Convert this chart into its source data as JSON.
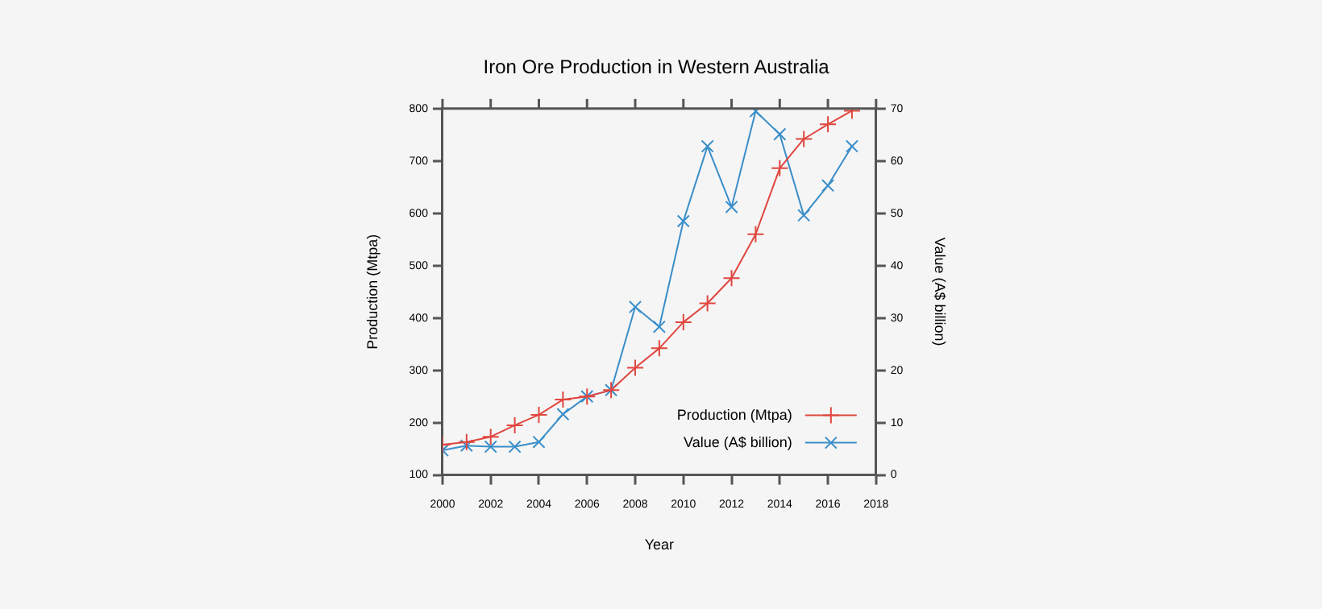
{
  "chart_data": {
    "type": "line",
    "title": "Iron Ore Production in Western Australia",
    "xlabel": "Year",
    "ylabel": "Production (Mtpa)",
    "y2label": "Value (A$ billion)",
    "x": [
      2000,
      2001,
      2002,
      2003,
      2004,
      2005,
      2006,
      2007,
      2008,
      2009,
      2010,
      2011,
      2012,
      2013,
      2014,
      2015,
      2016,
      2017
    ],
    "series": [
      {
        "name": "Production (Mtpa)",
        "color": "#e0463f",
        "marker": "cross",
        "values": [
          158,
          163,
          173,
          195,
          215,
          244,
          250,
          262,
          305,
          342,
          392,
          428,
          476,
          560,
          686,
          742,
          770,
          796
        ]
      },
      {
        "name": "Value (A$ billion)",
        "color": "#3a8ec9",
        "marker": "x",
        "axis": "y2",
        "values": [
          4.7,
          5.6,
          5.4,
          5.4,
          6.3,
          11.6,
          15,
          16.2,
          32.1,
          28.3,
          48.5,
          62.8,
          51.2,
          69.5,
          65.1,
          49.6,
          55.3,
          62.8
        ]
      }
    ],
    "xlim": [
      2000,
      2018
    ],
    "xticks": [
      2000,
      2002,
      2004,
      2006,
      2008,
      2010,
      2012,
      2014,
      2016,
      2018
    ],
    "ylim": [
      100,
      800
    ],
    "yticks": [
      100,
      200,
      300,
      400,
      500,
      600,
      700,
      800
    ],
    "y2lim": [
      0,
      70
    ],
    "y2ticks": [
      0,
      10,
      20,
      30,
      40,
      50,
      60,
      70
    ],
    "grid": false,
    "legend": "bottom right"
  }
}
